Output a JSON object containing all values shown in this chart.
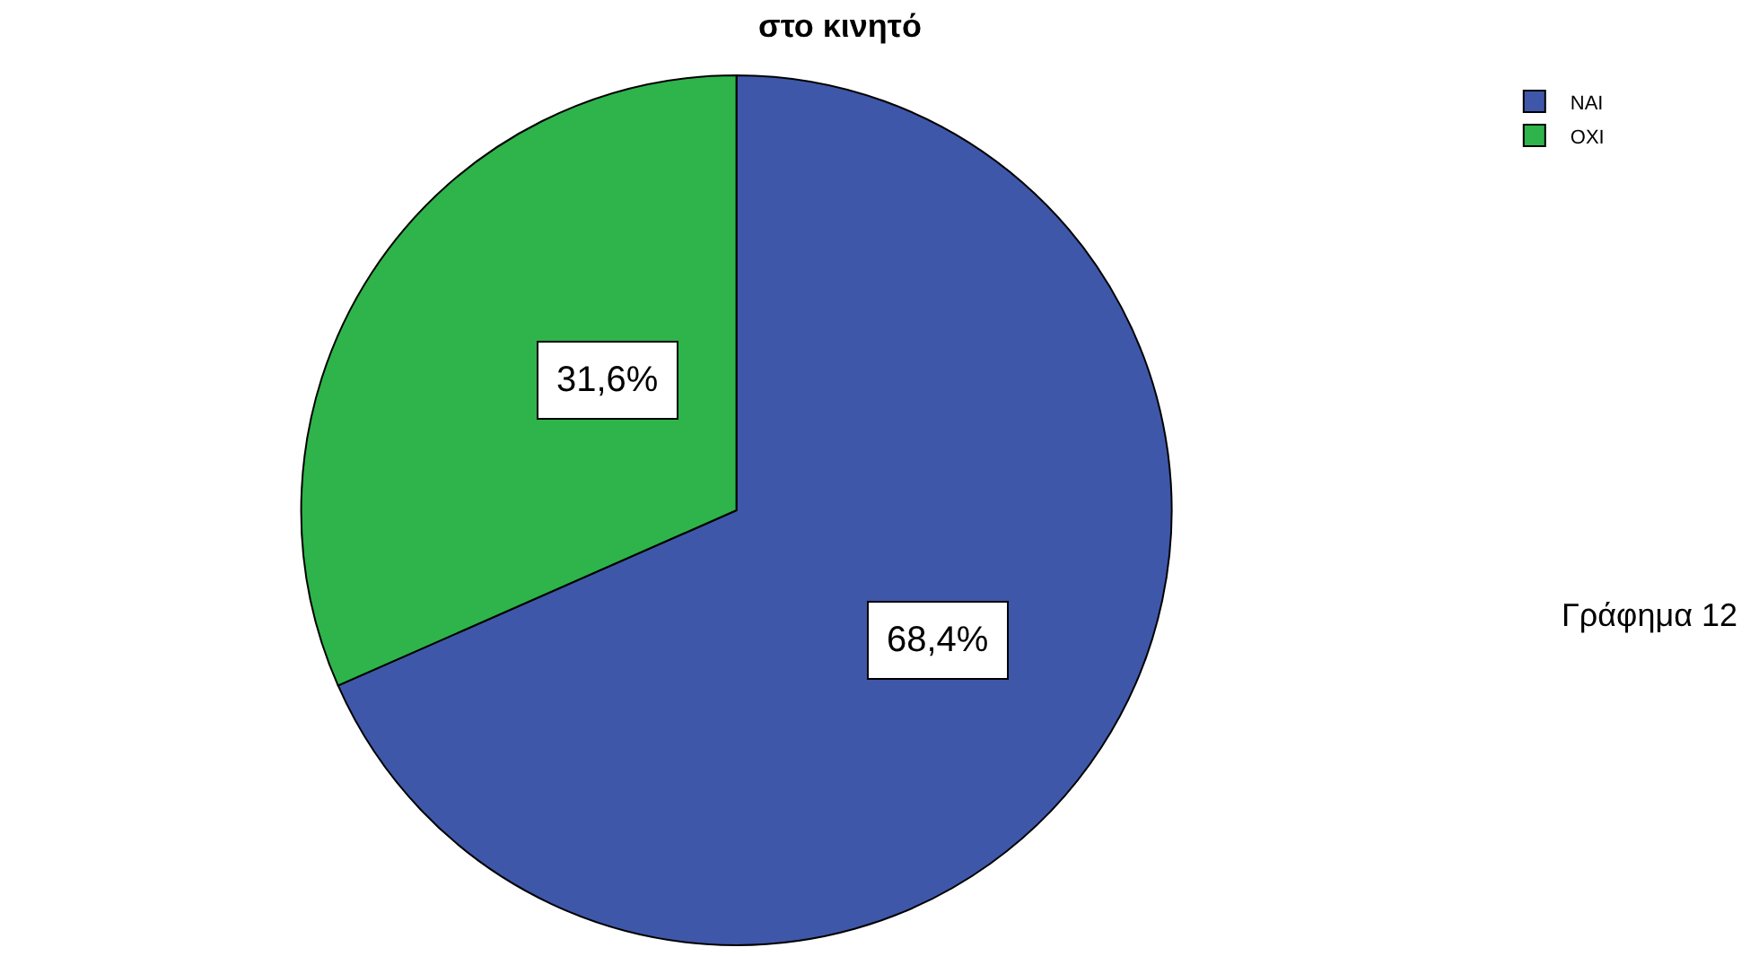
{
  "chart_data": {
    "type": "pie",
    "title": "στο κινητό",
    "categories": [
      "NAI",
      "OXI"
    ],
    "values": [
      68.4,
      31.6
    ],
    "colors": [
      "#3f57a9",
      "#2eb44a"
    ],
    "value_labels": [
      "68,4%",
      "31,6%"
    ],
    "legend": "top right",
    "annotations": [
      "Γράφημα 12"
    ]
  }
}
